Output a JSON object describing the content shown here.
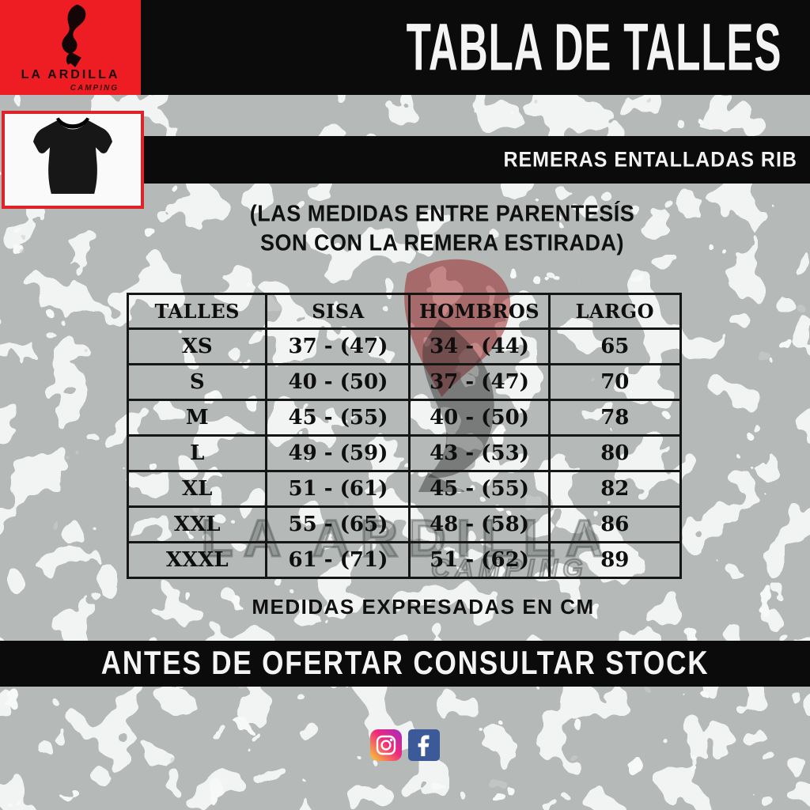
{
  "page": {
    "title": "TABLA DE TALLES",
    "subtitle_bar": "REMERAS ENTALLADAS RIB",
    "note_lines": [
      "(LAS MEDIDAS ENTRE PARENTESÍS",
      "SON CON LA REMERA ESTIRADA)"
    ],
    "units_note": "MEDIDAS EXPRESADAS EN CM",
    "stock_notice": "ANTES DE OFERTAR CONSULTAR STOCK"
  },
  "brand": {
    "name": "LA ARDILLA",
    "tagline": "CAMPING",
    "logo_icon": "squirrel-flame-icon"
  },
  "product_image": "black-fitted-tshirt-photo",
  "size_table": {
    "headers": [
      "TALLES",
      "SISA",
      "HOMBROS",
      "LARGO"
    ],
    "rows": [
      [
        "XS",
        "37 - (47)",
        "34 - (44)",
        "65"
      ],
      [
        "S",
        "40 - (50)",
        "37 - (47)",
        "70"
      ],
      [
        "M",
        "45 - (55)",
        "40 - (50)",
        "78"
      ],
      [
        "L",
        "49 - (59)",
        "43 - (53)",
        "80"
      ],
      [
        "XL",
        "51 - (61)",
        "45 - (55)",
        "82"
      ],
      [
        "XXL",
        "55 - (65)",
        "48 - (58)",
        "86"
      ],
      [
        "XXXL",
        "61 - (71)",
        "51 - (62)",
        "89"
      ]
    ]
  },
  "watermark": {
    "name": "LA ARDILLA",
    "tagline": "CAMPING"
  },
  "social": {
    "instagram": "instagram-icon",
    "facebook": "facebook-icon"
  },
  "colors": {
    "brand_red": "#ee1d24",
    "bar_black": "#0b0b0b",
    "facebook_blue": "#3d5a98",
    "instagram_gradient": [
      "#f9ce34",
      "#ee2a7b",
      "#a22bc4"
    ]
  }
}
